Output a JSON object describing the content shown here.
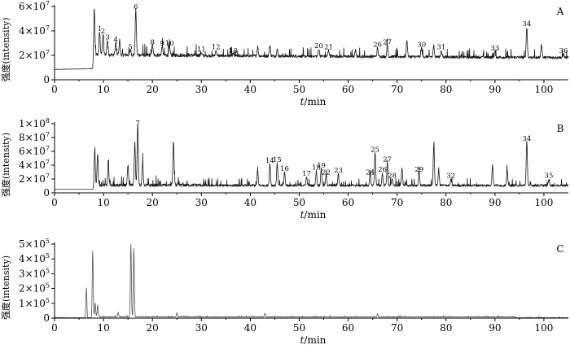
{
  "chart_data": [
    {
      "type": "line",
      "panel": "A",
      "xlabel": "t/min",
      "ylabel": "强度(intensity)",
      "xlim": [
        0,
        105
      ],
      "ylim": [
        0,
        60000000
      ],
      "xticks": [
        0,
        10,
        20,
        30,
        40,
        50,
        60,
        70,
        80,
        90,
        100
      ],
      "yticks": [
        {
          "value": 0,
          "label": "0"
        },
        {
          "value": 20000000,
          "label": "2×10⁷"
        },
        {
          "value": 40000000,
          "label": "4×10⁷"
        },
        {
          "value": 60000000,
          "label": "6×10⁷"
        }
      ],
      "baseline": [
        [
          0,
          8500000
        ],
        [
          8,
          9000000
        ],
        [
          8.2,
          19000000
        ],
        [
          105,
          17000000
        ]
      ],
      "peaks": [
        {
          "id": "1",
          "x": 9.2,
          "y": 38000000
        },
        {
          "id": "2",
          "x": 9.9,
          "y": 36000000
        },
        {
          "id": "3",
          "x": 10.8,
          "y": 31000000
        },
        {
          "id": "4",
          "x": 12.5,
          "y": 29000000
        },
        {
          "id": "5",
          "x": 15.5,
          "y": 23000000
        },
        {
          "id": "6",
          "x": 16.6,
          "y": 56000000
        },
        {
          "id": "8",
          "x": 20.0,
          "y": 27000000
        },
        {
          "id": "9",
          "x": 22.0,
          "y": 26000000
        },
        {
          "id": "10",
          "x": 23.5,
          "y": 26000000
        },
        {
          "id": "11",
          "x": 30.0,
          "y": 21000000
        },
        {
          "id": "12",
          "x": 33.0,
          "y": 23000000
        },
        {
          "id": "13",
          "x": 36.5,
          "y": 20000000
        },
        {
          "id": "20",
          "x": 54.0,
          "y": 24000000
        },
        {
          "id": "21",
          "x": 56.0,
          "y": 23000000
        },
        {
          "id": "26",
          "x": 66.0,
          "y": 25000000
        },
        {
          "id": "27",
          "x": 68.0,
          "y": 27000000
        },
        {
          "id": "30",
          "x": 75.0,
          "y": 25000000
        },
        {
          "id": "31",
          "x": 79.0,
          "y": 23000000
        },
        {
          "id": "33",
          "x": 90.0,
          "y": 22000000
        },
        {
          "id": "34",
          "x": 96.5,
          "y": 42000000
        },
        {
          "id": "36",
          "x": 104.0,
          "y": 20000000
        }
      ],
      "other_peaks": [
        {
          "x": 8.1,
          "y": 58000000
        },
        {
          "x": 13.3,
          "y": 31000000
        },
        {
          "x": 41.5,
          "y": 26000000
        },
        {
          "x": 44.0,
          "y": 27000000
        },
        {
          "x": 45.5,
          "y": 24000000
        },
        {
          "x": 61.5,
          "y": 23000000
        },
        {
          "x": 72.0,
          "y": 31000000
        },
        {
          "x": 77.5,
          "y": 27000000
        },
        {
          "x": 99.5,
          "y": 28000000
        }
      ]
    },
    {
      "type": "line",
      "panel": "B",
      "xlabel": "t/min",
      "ylabel": "强度(intensity)",
      "xlim": [
        0,
        105
      ],
      "ylim": [
        0,
        100000000
      ],
      "xticks": [
        0,
        10,
        20,
        30,
        40,
        50,
        60,
        70,
        80,
        90,
        100
      ],
      "yticks": [
        {
          "value": 0,
          "label": "0"
        },
        {
          "value": 20000000,
          "label": "2×10⁷"
        },
        {
          "value": 40000000,
          "label": "4×10⁷"
        },
        {
          "value": 60000000,
          "label": "6×10⁷"
        },
        {
          "value": 80000000,
          "label": "8×10⁷"
        },
        {
          "value": 100000000,
          "label": "1×10⁸"
        }
      ],
      "baseline": [
        [
          0,
          5000000
        ],
        [
          8,
          5000000
        ],
        [
          8.2,
          9000000
        ],
        [
          105,
          9000000
        ]
      ],
      "peaks": [
        {
          "id": "7",
          "x": 17.0,
          "y": 97000000
        },
        {
          "id": "14",
          "x": 44.0,
          "y": 40000000
        },
        {
          "id": "15",
          "x": 45.5,
          "y": 41000000
        },
        {
          "id": "16",
          "x": 47.0,
          "y": 28000000
        },
        {
          "id": "17",
          "x": 51.5,
          "y": 21000000
        },
        {
          "id": "18",
          "x": 53.5,
          "y": 30000000
        },
        {
          "id": "19",
          "x": 54.5,
          "y": 33000000
        },
        {
          "id": "22",
          "x": 55.5,
          "y": 23000000
        },
        {
          "id": "23",
          "x": 58.0,
          "y": 26000000
        },
        {
          "id": "24",
          "x": 64.5,
          "y": 23000000
        },
        {
          "id": "25",
          "x": 65.5,
          "y": 56000000
        },
        {
          "id": "26",
          "x": 67.0,
          "y": 27000000
        },
        {
          "id": "27",
          "x": 68.0,
          "y": 42000000
        },
        {
          "id": "28",
          "x": 69.0,
          "y": 18000000
        },
        {
          "id": "29",
          "x": 74.5,
          "y": 27000000
        },
        {
          "id": "32",
          "x": 81.0,
          "y": 18000000
        },
        {
          "id": "34",
          "x": 96.5,
          "y": 72000000
        },
        {
          "id": "35",
          "x": 101.0,
          "y": 18000000
        }
      ],
      "other_peaks": [
        {
          "x": 8.2,
          "y": 60000000
        },
        {
          "x": 8.8,
          "y": 55000000
        },
        {
          "x": 11.0,
          "y": 38000000
        },
        {
          "x": 15.0,
          "y": 37000000
        },
        {
          "x": 16.4,
          "y": 70000000
        },
        {
          "x": 18.0,
          "y": 42000000
        },
        {
          "x": 24.3,
          "y": 73000000
        },
        {
          "x": 41.5,
          "y": 30000000
        },
        {
          "x": 71.0,
          "y": 35000000
        },
        {
          "x": 77.5,
          "y": 68000000
        },
        {
          "x": 78.5,
          "y": 30000000
        },
        {
          "x": 89.5,
          "y": 38000000
        },
        {
          "x": 92.5,
          "y": 30000000
        }
      ]
    },
    {
      "type": "line",
      "panel": "C",
      "xlabel": "t/min",
      "ylabel": "强度(intensity)",
      "xlim": [
        0,
        105
      ],
      "ylim": [
        0,
        500000
      ],
      "xticks": [
        0,
        10,
        20,
        30,
        40,
        50,
        60,
        70,
        80,
        90,
        100
      ],
      "yticks": [
        {
          "value": 0,
          "label": "0"
        },
        {
          "value": 100000,
          "label": "1×10⁵"
        },
        {
          "value": 200000,
          "label": "2×10⁵"
        },
        {
          "value": 300000,
          "label": "3×10⁵"
        },
        {
          "value": 400000,
          "label": "4×10⁵"
        },
        {
          "value": 500000,
          "label": "5×10⁵"
        }
      ],
      "baseline": [
        [
          0,
          0
        ],
        [
          105,
          0
        ]
      ],
      "peaks": [],
      "other_peaks": [
        {
          "x": 6.5,
          "y": 200000
        },
        {
          "x": 7.8,
          "y": 450000
        },
        {
          "x": 8.3,
          "y": 90000
        },
        {
          "x": 8.8,
          "y": 80000
        },
        {
          "x": 13.0,
          "y": 30000
        },
        {
          "x": 15.6,
          "y": 490000
        },
        {
          "x": 16.2,
          "y": 460000
        },
        {
          "x": 25.0,
          "y": 25000
        },
        {
          "x": 43.0,
          "y": 25000
        },
        {
          "x": 66.0,
          "y": 20000
        }
      ]
    }
  ]
}
